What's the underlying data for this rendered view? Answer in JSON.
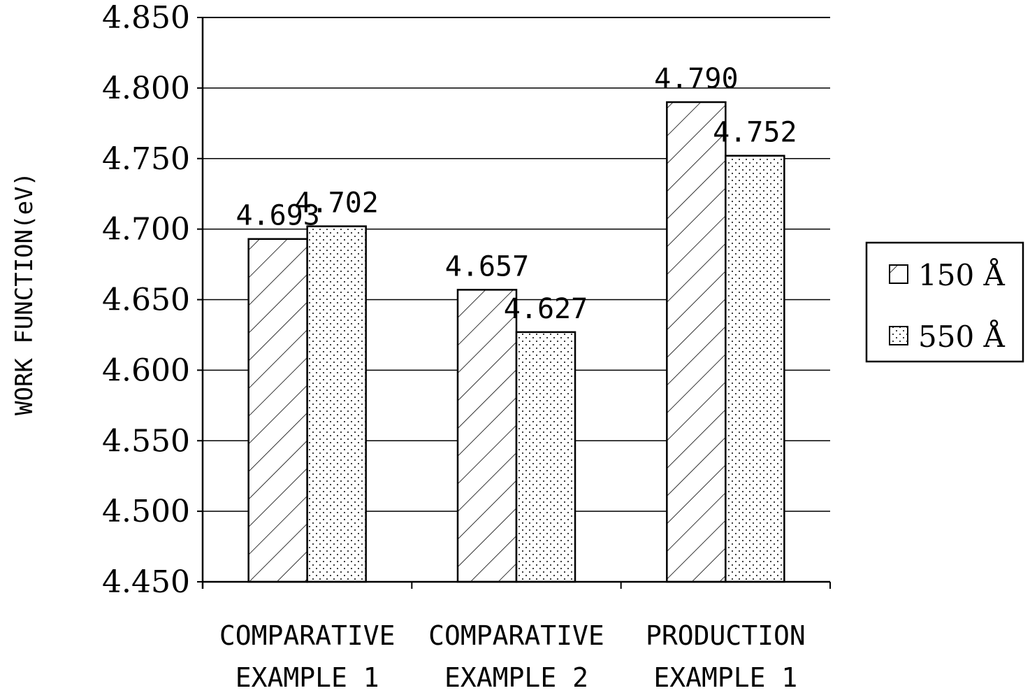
{
  "chart_data": {
    "type": "bar",
    "title": "",
    "xlabel": "",
    "ylabel": "WORK FUNCTION(eV)",
    "categories": [
      [
        "COMPARATIVE",
        "EXAMPLE 1"
      ],
      [
        "COMPARATIVE",
        "EXAMPLE 2"
      ],
      [
        "PRODUCTION",
        "EXAMPLE 1"
      ]
    ],
    "series": [
      {
        "name": "150 Å",
        "values": [
          4.693,
          4.657,
          4.79
        ],
        "labels": [
          "4.693",
          "4.657",
          "4.790"
        ],
        "pattern": "diagonal-hatch"
      },
      {
        "name": "550 Å",
        "values": [
          4.702,
          4.627,
          4.752
        ],
        "labels": [
          "4.702",
          "4.627",
          "4.752"
        ],
        "pattern": "dots"
      }
    ],
    "ylim": [
      4.45,
      4.85
    ],
    "yticks": [
      "4.850",
      "4.800",
      "4.750",
      "4.700",
      "4.650",
      "4.600",
      "4.550",
      "4.500",
      "4.450"
    ],
    "ytick_values": [
      4.85,
      4.8,
      4.75,
      4.7,
      4.65,
      4.6,
      4.55,
      4.5,
      4.45
    ],
    "grid": true,
    "legend_position": "right",
    "colors": {
      "bar_fill": "#ffffff",
      "stroke": "#000000",
      "grid": "#000000"
    }
  }
}
